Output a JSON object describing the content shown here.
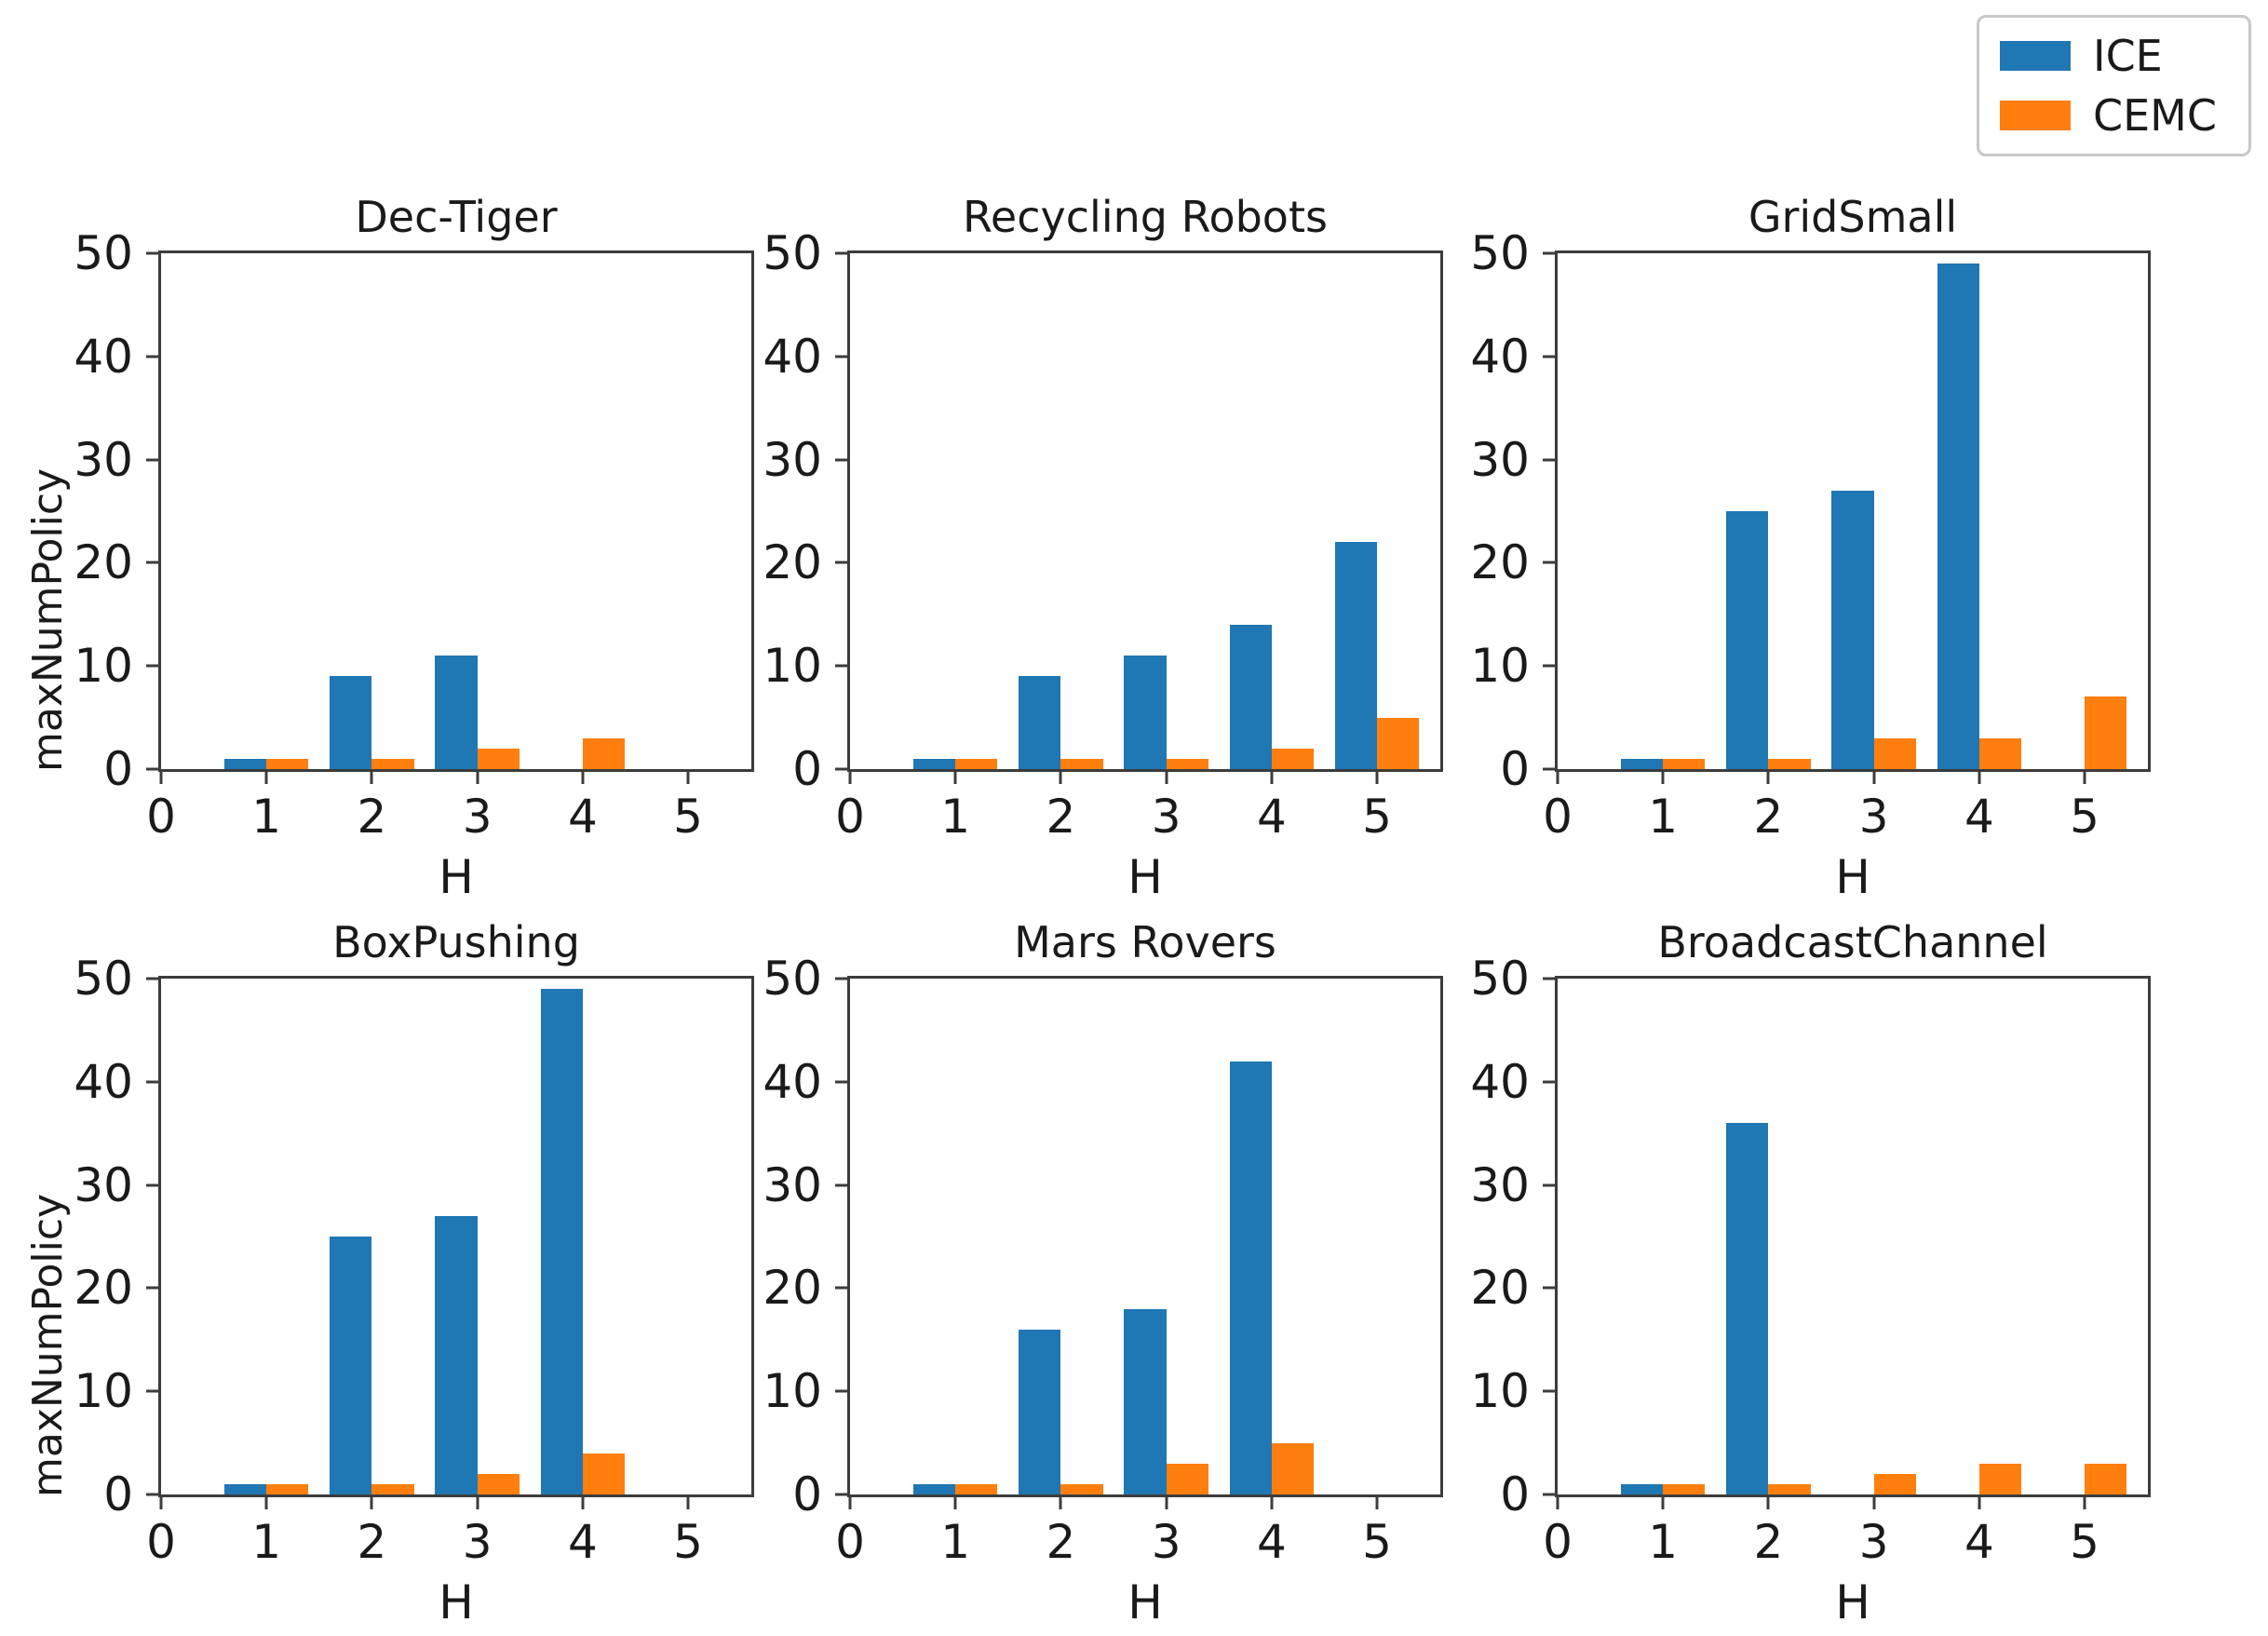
{
  "figure": {
    "background": "#ffffff",
    "text_color": "#1a1a1a",
    "spine_color": "#3c3c3c"
  },
  "legend": {
    "position": "top-right",
    "items": [
      {
        "label": "ICE",
        "color": "#1f77b4"
      },
      {
        "label": "CEMC",
        "color": "#ff7f0e"
      }
    ]
  },
  "chart_data": [
    {
      "type": "bar",
      "title": "Dec-Tiger",
      "xlabel": "H",
      "ylabel": "maxNumPolicy",
      "categories": [
        1,
        2,
        3,
        4,
        5
      ],
      "series": [
        {
          "name": "ICE",
          "color": "#1f77b4",
          "values": [
            1,
            9,
            11,
            0,
            0
          ]
        },
        {
          "name": "CEMC",
          "color": "#ff7f0e",
          "values": [
            1,
            1,
            2,
            3,
            0
          ]
        }
      ],
      "ylim": [
        0,
        50
      ],
      "xlim": [
        0,
        5.6
      ],
      "yticks": [
        0,
        10,
        20,
        30,
        40,
        50
      ],
      "xticks": [
        0,
        1,
        2,
        3,
        4,
        5
      ],
      "bar_width": 0.4,
      "grid": false
    },
    {
      "type": "bar",
      "title": "Recycling Robots",
      "xlabel": "H",
      "ylabel": "",
      "categories": [
        1,
        2,
        3,
        4,
        5
      ],
      "series": [
        {
          "name": "ICE",
          "color": "#1f77b4",
          "values": [
            1,
            9,
            11,
            14,
            22
          ]
        },
        {
          "name": "CEMC",
          "color": "#ff7f0e",
          "values": [
            1,
            1,
            1,
            2,
            5
          ]
        }
      ],
      "ylim": [
        0,
        50
      ],
      "xlim": [
        0,
        5.6
      ],
      "yticks": [
        0,
        10,
        20,
        30,
        40,
        50
      ],
      "xticks": [
        0,
        1,
        2,
        3,
        4,
        5
      ],
      "bar_width": 0.4,
      "grid": false
    },
    {
      "type": "bar",
      "title": "GridSmall",
      "xlabel": "H",
      "ylabel": "",
      "categories": [
        1,
        2,
        3,
        4,
        5
      ],
      "series": [
        {
          "name": "ICE",
          "color": "#1f77b4",
          "values": [
            1,
            25,
            27,
            49,
            0
          ]
        },
        {
          "name": "CEMC",
          "color": "#ff7f0e",
          "values": [
            1,
            1,
            3,
            3,
            7
          ]
        }
      ],
      "ylim": [
        0,
        50
      ],
      "xlim": [
        0,
        5.6
      ],
      "yticks": [
        0,
        10,
        20,
        30,
        40,
        50
      ],
      "xticks": [
        0,
        1,
        2,
        3,
        4,
        5
      ],
      "bar_width": 0.4,
      "grid": false
    },
    {
      "type": "bar",
      "title": "BoxPushing",
      "xlabel": "H",
      "ylabel": "maxNumPolicy",
      "categories": [
        1,
        2,
        3,
        4,
        5
      ],
      "series": [
        {
          "name": "ICE",
          "color": "#1f77b4",
          "values": [
            1,
            25,
            27,
            49,
            0
          ]
        },
        {
          "name": "CEMC",
          "color": "#ff7f0e",
          "values": [
            1,
            1,
            2,
            4,
            0
          ]
        }
      ],
      "ylim": [
        0,
        50
      ],
      "xlim": [
        0,
        5.6
      ],
      "yticks": [
        0,
        10,
        20,
        30,
        40,
        50
      ],
      "xticks": [
        0,
        1,
        2,
        3,
        4,
        5
      ],
      "bar_width": 0.4,
      "grid": false
    },
    {
      "type": "bar",
      "title": "Mars Rovers",
      "xlabel": "H",
      "ylabel": "",
      "categories": [
        1,
        2,
        3,
        4,
        5
      ],
      "series": [
        {
          "name": "ICE",
          "color": "#1f77b4",
          "values": [
            1,
            16,
            18,
            42,
            0
          ]
        },
        {
          "name": "CEMC",
          "color": "#ff7f0e",
          "values": [
            1,
            1,
            3,
            5,
            0
          ]
        }
      ],
      "ylim": [
        0,
        50
      ],
      "xlim": [
        0,
        5.6
      ],
      "yticks": [
        0,
        10,
        20,
        30,
        40,
        50
      ],
      "xticks": [
        0,
        1,
        2,
        3,
        4,
        5
      ],
      "bar_width": 0.4,
      "grid": false
    },
    {
      "type": "bar",
      "title": "BroadcastChannel",
      "xlabel": "H",
      "ylabel": "",
      "categories": [
        1,
        2,
        3,
        4,
        5
      ],
      "series": [
        {
          "name": "ICE",
          "color": "#1f77b4",
          "values": [
            1,
            36,
            0,
            0,
            0
          ]
        },
        {
          "name": "CEMC",
          "color": "#ff7f0e",
          "values": [
            1,
            1,
            2,
            3,
            3
          ]
        }
      ],
      "ylim": [
        0,
        50
      ],
      "xlim": [
        0,
        5.6
      ],
      "yticks": [
        0,
        10,
        20,
        30,
        40,
        50
      ],
      "xticks": [
        0,
        1,
        2,
        3,
        4,
        5
      ],
      "bar_width": 0.4,
      "grid": false
    }
  ]
}
